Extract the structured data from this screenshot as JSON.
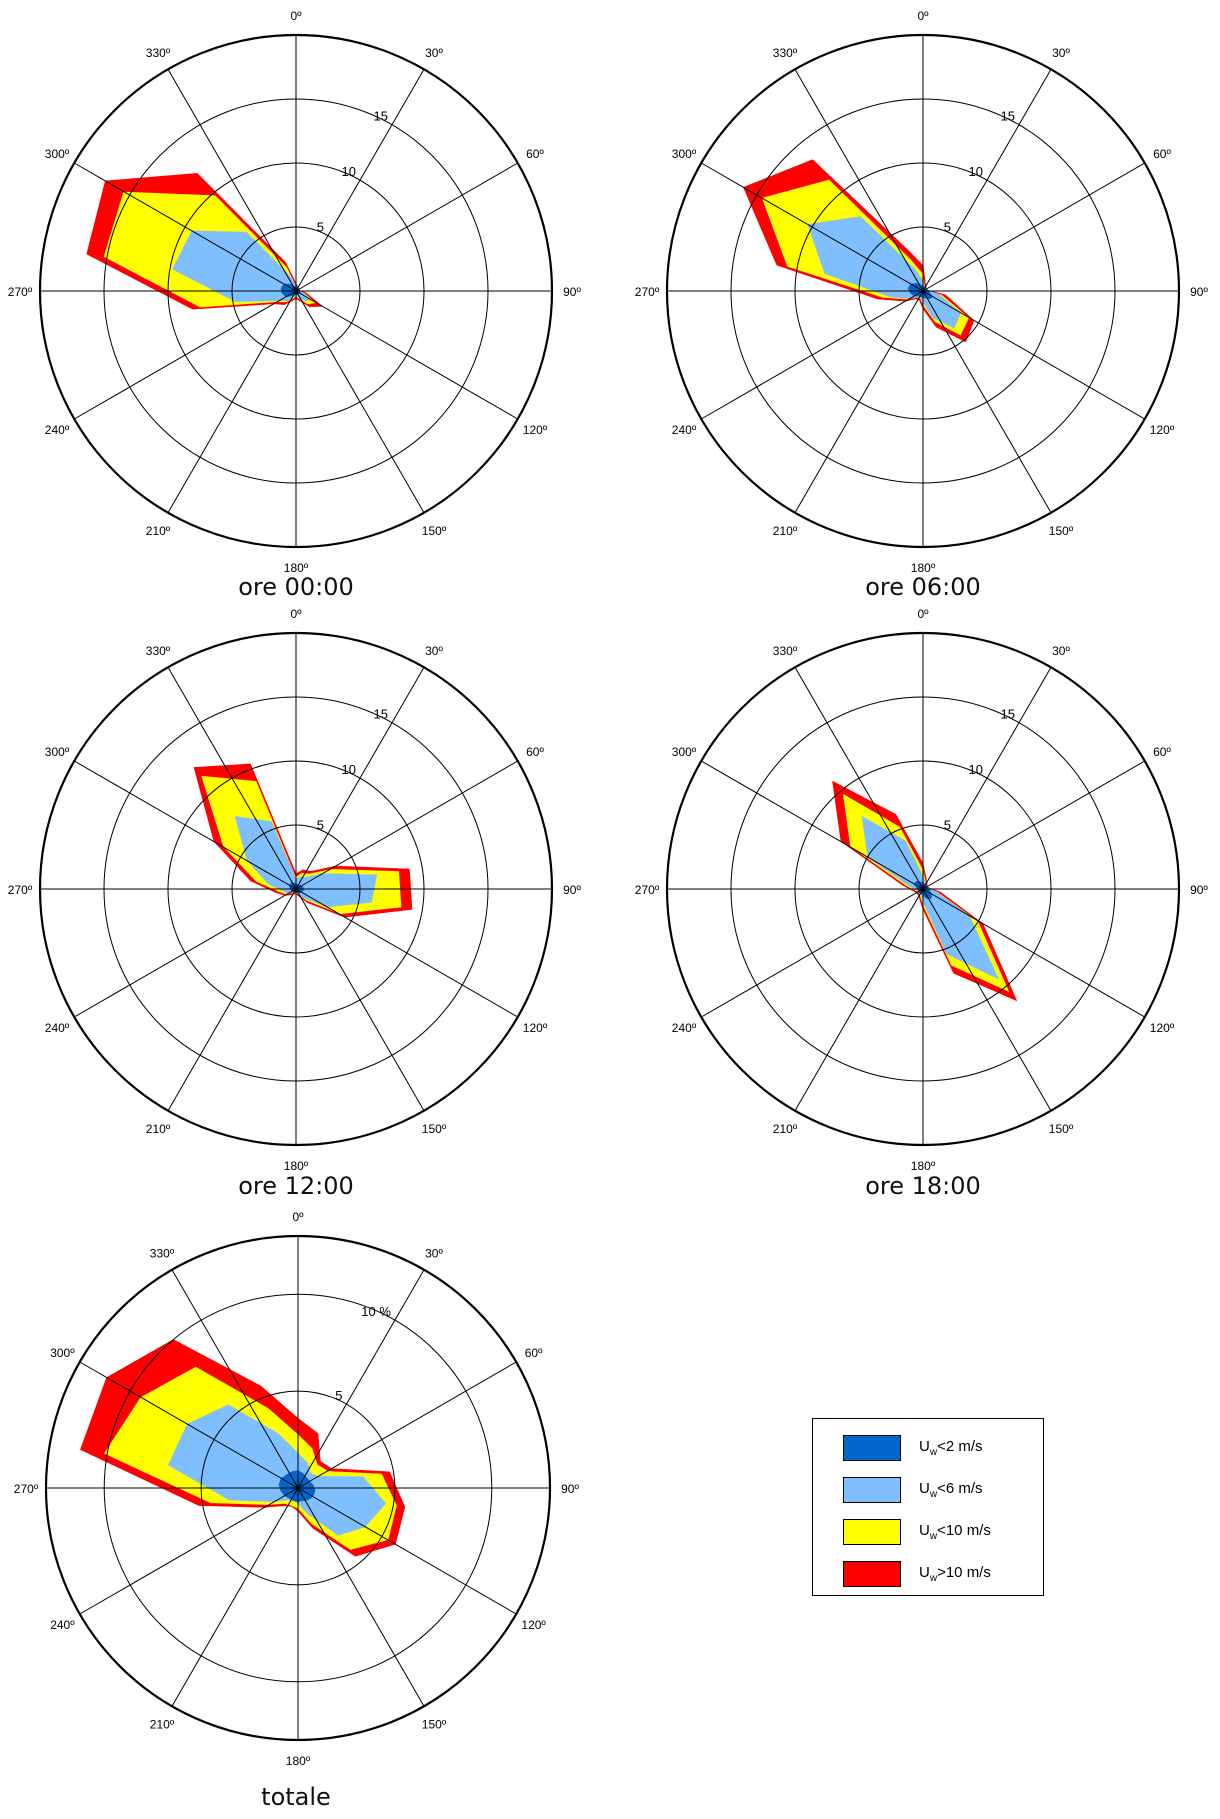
{
  "chart_data": [
    {
      "type": "polar-area",
      "title": "ore 00:00",
      "rmax": 20,
      "rings": [
        5,
        10,
        15
      ],
      "ring_labels": [
        "5",
        "10",
        "15"
      ],
      "directions": [
        0,
        30,
        60,
        90,
        120,
        150,
        180,
        210,
        240,
        270,
        300,
        330
      ],
      "direction_labels": [
        "0º",
        "30º",
        "60º",
        "90º",
        "120º",
        "150º",
        "180º",
        "210º",
        "240º",
        "270º",
        "300º",
        "330º"
      ],
      "series": [
        {
          "name": "Uw>10 m/s",
          "angles": [
            0,
            20,
            40,
            60,
            80,
            100,
            120,
            140,
            160,
            180,
            200,
            220,
            240,
            260,
            280,
            300,
            320,
            340
          ],
          "values": [
            0.6,
            0.4,
            0.3,
            0.2,
            0.2,
            0.8,
            2.4,
            1.6,
            0.8,
            0.6,
            0.8,
            1.4,
            2.0,
            8.2,
            16.6,
            17.2,
            12.0,
            2.4
          ]
        },
        {
          "name": "Uw<10 m/s",
          "angles": [
            0,
            20,
            40,
            60,
            80,
            100,
            120,
            140,
            160,
            180,
            200,
            220,
            240,
            260,
            280,
            300,
            320,
            340
          ],
          "values": [
            0.5,
            0.3,
            0.3,
            0.2,
            0.2,
            0.7,
            1.9,
            1.4,
            0.7,
            0.5,
            0.7,
            1.2,
            1.8,
            7.6,
            15.3,
            15.6,
            9.8,
            2.0
          ]
        },
        {
          "name": "Uw<6 m/s",
          "angles": [
            0,
            20,
            40,
            60,
            80,
            100,
            120,
            140,
            160,
            180,
            200,
            220,
            240,
            260,
            280,
            300,
            320,
            340
          ],
          "values": [
            0.4,
            0.3,
            0.2,
            0.2,
            0.2,
            0.5,
            1.4,
            1.0,
            0.5,
            0.4,
            0.5,
            1.0,
            1.5,
            4.8,
            9.8,
            9.4,
            6.0,
            1.2
          ]
        },
        {
          "name": "Uw<2 m/s",
          "angles": [
            0,
            20,
            40,
            60,
            80,
            100,
            120,
            140,
            160,
            180,
            200,
            220,
            240,
            260,
            280,
            300,
            320,
            340
          ],
          "values": [
            0.3,
            0.3,
            0.3,
            0.3,
            0.3,
            0.3,
            0.4,
            0.3,
            0.3,
            0.3,
            0.3,
            0.5,
            0.9,
            1.1,
            1.2,
            1.1,
            0.7,
            0.4
          ]
        }
      ]
    },
    {
      "type": "polar-area",
      "title": "ore 06:00",
      "rmax": 20,
      "rings": [
        5,
        10,
        15
      ],
      "ring_labels": [
        "5",
        "10",
        "15"
      ],
      "directions": [
        0,
        30,
        60,
        90,
        120,
        150,
        180,
        210,
        240,
        270,
        300,
        330
      ],
      "direction_labels": [
        "0º",
        "30º",
        "60º",
        "90º",
        "120º",
        "150º",
        "180º",
        "210º",
        "240º",
        "270º",
        "300º",
        "330º"
      ],
      "series": [
        {
          "name": "Uw>10 m/s",
          "angles": [
            0,
            20,
            40,
            60,
            80,
            100,
            120,
            140,
            160,
            180,
            200,
            220,
            240,
            260,
            280,
            300,
            320,
            340
          ],
          "values": [
            2.0,
            0.6,
            0.4,
            0.3,
            0.4,
            1.8,
            4.6,
            5.2,
            3.0,
            1.4,
            0.8,
            0.8,
            1.6,
            3.6,
            11.6,
            16.2,
            13.4,
            3.4
          ]
        },
        {
          "name": "Uw<10 m/s",
          "angles": [
            0,
            20,
            40,
            60,
            80,
            100,
            120,
            140,
            160,
            180,
            200,
            220,
            240,
            260,
            280,
            300,
            320,
            340
          ],
          "values": [
            1.4,
            0.5,
            0.3,
            0.3,
            0.3,
            1.5,
            4.2,
            4.6,
            2.6,
            1.2,
            0.7,
            0.7,
            1.4,
            3.2,
            10.8,
            14.6,
            11.4,
            2.6
          ]
        },
        {
          "name": "Uw<6 m/s",
          "angles": [
            0,
            20,
            40,
            60,
            80,
            100,
            120,
            140,
            160,
            180,
            200,
            220,
            240,
            260,
            280,
            300,
            320,
            340
          ],
          "values": [
            0.8,
            0.4,
            0.3,
            0.3,
            0.3,
            1.2,
            3.4,
            3.8,
            2.2,
            0.9,
            0.6,
            0.6,
            1.2,
            2.6,
            7.8,
            10.4,
            7.6,
            1.8
          ]
        },
        {
          "name": "Uw<2 m/s",
          "angles": [
            0,
            20,
            40,
            60,
            80,
            100,
            120,
            140,
            160,
            180,
            200,
            220,
            240,
            260,
            280,
            300,
            320,
            340
          ],
          "values": [
            0.4,
            0.3,
            0.3,
            0.3,
            0.4,
            0.5,
            0.9,
            0.8,
            0.6,
            0.5,
            0.5,
            0.5,
            0.8,
            1.0,
            1.2,
            1.1,
            0.8,
            0.5
          ]
        }
      ]
    },
    {
      "type": "polar-area",
      "title": "ore 12:00",
      "rmax": 20,
      "rings": [
        5,
        10,
        15
      ],
      "ring_labels": [
        "5",
        "10",
        "15"
      ],
      "directions": [
        0,
        30,
        60,
        90,
        120,
        150,
        180,
        210,
        240,
        270,
        300,
        330
      ],
      "direction_labels": [
        "0º",
        "30º",
        "60º",
        "90º",
        "120º",
        "150º",
        "180º",
        "210º",
        "240º",
        "270º",
        "300º",
        "330º"
      ],
      "series": [
        {
          "name": "Uw>10 m/s",
          "angles": [
            0,
            20,
            40,
            60,
            80,
            100,
            120,
            140,
            160,
            180,
            200,
            220,
            240,
            260,
            280,
            300,
            320,
            340
          ],
          "values": [
            1.2,
            1.6,
            1.8,
            3.6,
            9.0,
            9.2,
            4.4,
            1.4,
            0.6,
            0.4,
            0.4,
            0.6,
            1.0,
            1.6,
            3.6,
            7.4,
            12.4,
            10.4
          ]
        },
        {
          "name": "Uw<10 m/s",
          "angles": [
            0,
            20,
            40,
            60,
            80,
            100,
            120,
            140,
            160,
            180,
            200,
            220,
            240,
            260,
            280,
            300,
            320,
            340
          ],
          "values": [
            1.0,
            1.4,
            1.6,
            3.2,
            8.2,
            8.4,
            4.0,
            1.2,
            0.5,
            0.4,
            0.4,
            0.5,
            0.9,
            1.4,
            3.2,
            6.6,
            11.6,
            9.0
          ]
        },
        {
          "name": "Uw<6 m/s",
          "angles": [
            0,
            20,
            40,
            60,
            80,
            100,
            120,
            140,
            160,
            180,
            200,
            220,
            240,
            260,
            280,
            300,
            320,
            340
          ],
          "values": [
            0.8,
            1.0,
            1.2,
            2.4,
            6.4,
            6.0,
            2.8,
            0.9,
            0.4,
            0.3,
            0.3,
            0.4,
            0.7,
            1.0,
            2.2,
            4.4,
            7.4,
            5.6
          ]
        },
        {
          "name": "Uw<2 m/s",
          "angles": [
            0,
            20,
            40,
            60,
            80,
            100,
            120,
            140,
            160,
            180,
            200,
            220,
            240,
            260,
            280,
            300,
            320,
            340
          ],
          "values": [
            0.4,
            0.4,
            0.4,
            0.5,
            0.6,
            0.6,
            0.5,
            0.4,
            0.3,
            0.3,
            0.3,
            0.3,
            0.4,
            0.4,
            0.5,
            0.6,
            0.6,
            0.5
          ]
        }
      ]
    },
    {
      "type": "polar-area",
      "title": "ore 18:00",
      "rmax": 20,
      "rings": [
        5,
        10,
        15
      ],
      "ring_labels": [
        "5",
        "10",
        "15"
      ],
      "directions": [
        0,
        30,
        60,
        90,
        120,
        150,
        180,
        210,
        240,
        270,
        300,
        330
      ],
      "direction_labels": [
        "0º",
        "30º",
        "60º",
        "90º",
        "120º",
        "150º",
        "180º",
        "210º",
        "240º",
        "270º",
        "300º",
        "330º"
      ],
      "series": [
        {
          "name": "Uw>10 m/s",
          "angles": [
            0,
            20,
            40,
            60,
            80,
            100,
            120,
            140,
            160,
            180,
            200,
            220,
            240,
            260,
            280,
            300,
            320,
            340
          ],
          "values": [
            2.0,
            0.8,
            0.5,
            0.4,
            0.5,
            1.4,
            5.4,
            11.4,
            7.0,
            1.6,
            0.8,
            0.6,
            0.6,
            0.8,
            1.6,
            7.4,
            11.0,
            6.2
          ]
        },
        {
          "name": "Uw<10 m/s",
          "angles": [
            0,
            20,
            40,
            60,
            80,
            100,
            120,
            140,
            160,
            180,
            200,
            220,
            240,
            260,
            280,
            300,
            320,
            340
          ],
          "values": [
            1.6,
            0.7,
            0.4,
            0.4,
            0.4,
            1.2,
            5.0,
            10.6,
            6.4,
            1.4,
            0.7,
            0.5,
            0.5,
            0.7,
            1.4,
            6.6,
            9.8,
            5.2
          ]
        },
        {
          "name": "Uw<6 m/s",
          "angles": [
            0,
            20,
            40,
            60,
            80,
            100,
            120,
            140,
            160,
            180,
            200,
            220,
            240,
            260,
            280,
            300,
            320,
            340
          ],
          "values": [
            1.0,
            0.5,
            0.4,
            0.3,
            0.4,
            1.0,
            4.2,
            9.2,
            5.4,
            1.0,
            0.5,
            0.4,
            0.4,
            0.5,
            1.0,
            5.0,
            7.4,
            4.0
          ]
        },
        {
          "name": "Uw<2 m/s",
          "angles": [
            0,
            20,
            40,
            60,
            80,
            100,
            120,
            140,
            160,
            180,
            200,
            220,
            240,
            260,
            280,
            300,
            320,
            340
          ],
          "values": [
            0.5,
            0.4,
            0.4,
            0.4,
            0.4,
            0.5,
            0.8,
            1.0,
            0.8,
            0.5,
            0.4,
            0.4,
            0.4,
            0.4,
            0.5,
            0.8,
            0.8,
            0.6
          ]
        }
      ]
    },
    {
      "type": "polar-area",
      "title": "totale",
      "rmax": 13,
      "rings": [
        5,
        10
      ],
      "ring_labels": [
        "5",
        "10 %"
      ],
      "directions": [
        0,
        30,
        60,
        90,
        120,
        150,
        180,
        210,
        240,
        270,
        300,
        330
      ],
      "direction_labels": [
        "0º",
        "30º",
        "60º",
        "90º",
        "120º",
        "150º",
        "180º",
        "210º",
        "240º",
        "270º",
        "300º",
        "330º"
      ],
      "series": [
        {
          "name": "Uw>10 m/s",
          "angles": [
            0,
            20,
            40,
            60,
            80,
            100,
            120,
            140,
            160,
            180,
            200,
            220,
            240,
            260,
            280,
            300,
            320,
            340
          ],
          "values": [
            3.6,
            3.0,
            1.8,
            2.0,
            4.8,
            5.6,
            5.8,
            4.6,
            2.2,
            1.2,
            1.0,
            1.2,
            2.0,
            5.2,
            11.4,
            11.4,
            10.0,
            5.6
          ]
        },
        {
          "name": "Uw<10 m/s",
          "angles": [
            0,
            20,
            40,
            60,
            80,
            100,
            120,
            140,
            160,
            180,
            200,
            220,
            240,
            260,
            280,
            300,
            320,
            340
          ],
          "values": [
            2.8,
            2.2,
            1.6,
            1.8,
            4.4,
            5.2,
            5.4,
            4.2,
            2.0,
            1.1,
            1.0,
            1.1,
            1.8,
            4.6,
            10.2,
            9.4,
            8.2,
            4.4
          ]
        },
        {
          "name": "Uw<6 m/s",
          "angles": [
            0,
            20,
            40,
            60,
            80,
            100,
            120,
            140,
            160,
            180,
            200,
            220,
            240,
            260,
            280,
            300,
            320,
            340
          ],
          "values": [
            1.8,
            1.4,
            1.0,
            1.2,
            3.4,
            4.6,
            4.0,
            3.2,
            1.4,
            0.8,
            0.7,
            0.8,
            1.4,
            3.6,
            6.8,
            6.6,
            5.6,
            3.0
          ]
        },
        {
          "name": "Uw<2 m/s",
          "angles": [
            0,
            20,
            40,
            60,
            80,
            100,
            120,
            140,
            160,
            180,
            200,
            220,
            240,
            260,
            280,
            300,
            320,
            340
          ],
          "values": [
            0.9,
            0.8,
            0.7,
            0.7,
            0.8,
            0.9,
            0.9,
            0.8,
            0.7,
            0.7,
            0.7,
            0.7,
            0.8,
            0.9,
            1.0,
            1.0,
            0.9,
            0.9
          ]
        }
      ]
    }
  ],
  "colors": {
    "Uw>10 m/s": "#ff0000",
    "Uw<10 m/s": "#ffff00",
    "Uw<6 m/s": "#7fbfff",
    "Uw<2 m/s": "#0066cc"
  },
  "legend": {
    "items": [
      {
        "base": "U",
        "sub": "w",
        "rest": "<2 m/s",
        "color": "#0066cc"
      },
      {
        "base": "U",
        "sub": "w",
        "rest": "<6 m/s",
        "color": "#7fbfff"
      },
      {
        "base": "U",
        "sub": "w",
        "rest": "<10 m/s",
        "color": "#ffff00"
      },
      {
        "base": "U",
        "sub": "w",
        "rest": ">10 m/s",
        "color": "#ff0000"
      }
    ]
  }
}
